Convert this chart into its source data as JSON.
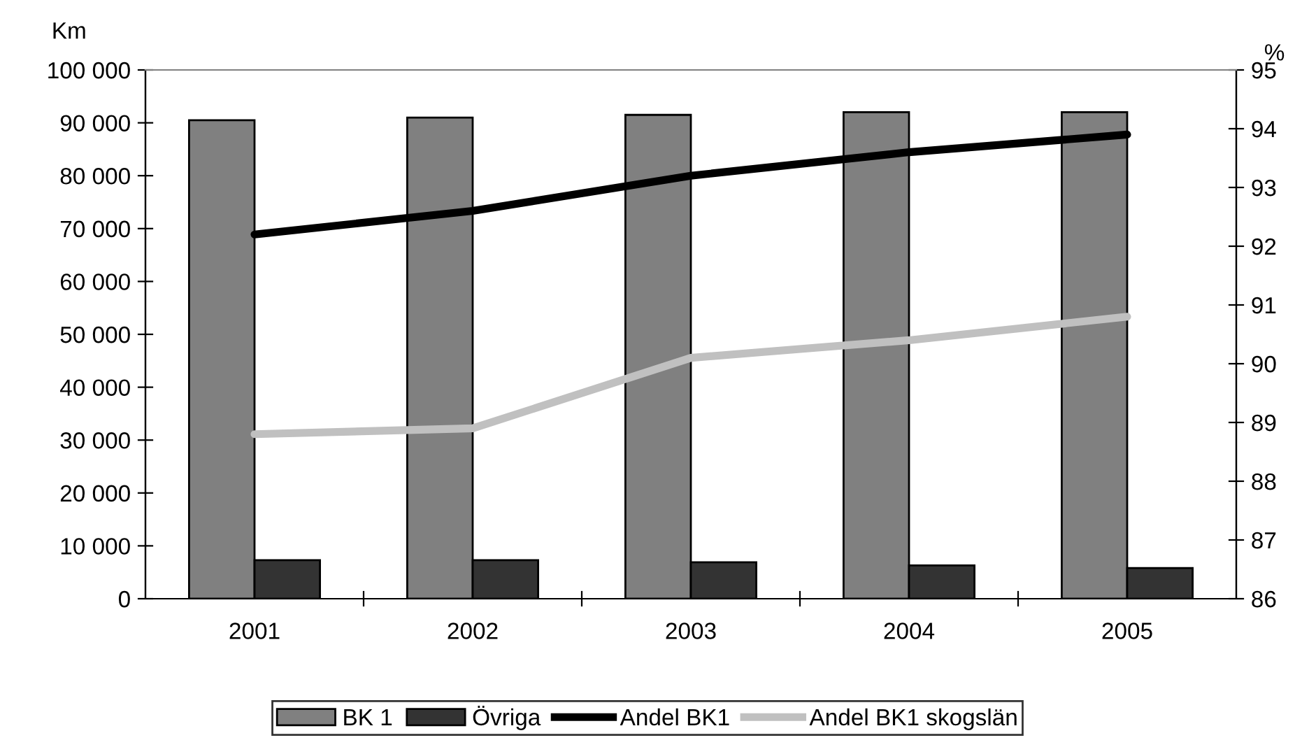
{
  "chart_data": {
    "type": "bar",
    "categories": [
      "2001",
      "2002",
      "2003",
      "2004",
      "2005"
    ],
    "ylabel": "Km",
    "y2label": "%",
    "series": [
      {
        "name": "BK 1",
        "color": "#808080",
        "values": [
          90500,
          91000,
          91500,
          92000,
          92000
        ]
      },
      {
        "name": "Övriga",
        "color": "#333333",
        "values": [
          7300,
          7300,
          6900,
          6300,
          5800
        ]
      },
      {
        "name": "Andel BK1",
        "type": "line",
        "axis": "y2",
        "color": "#000000",
        "values": [
          92.2,
          92.6,
          93.2,
          93.6,
          93.9
        ]
      },
      {
        "name": "Andel BK1 skogslän",
        "type": "line",
        "axis": "y2",
        "color": "#c0c0c0",
        "values": [
          88.8,
          88.9,
          90.1,
          90.4,
          90.8
        ]
      }
    ],
    "ylim": [
      0,
      100000
    ],
    "yticks": [
      {
        "value": 0,
        "label": "0"
      },
      {
        "value": 10000,
        "label": "10 000"
      },
      {
        "value": 20000,
        "label": "20 000"
      },
      {
        "value": 30000,
        "label": "30 000"
      },
      {
        "value": 40000,
        "label": "40 000"
      },
      {
        "value": 50000,
        "label": "50 000"
      },
      {
        "value": 60000,
        "label": "60 000"
      },
      {
        "value": 70000,
        "label": "70 000"
      },
      {
        "value": 80000,
        "label": "80 000"
      },
      {
        "value": 90000,
        "label": "90 000"
      },
      {
        "value": 100000,
        "label": "100 000"
      }
    ],
    "y2lim": [
      86,
      95
    ],
    "y2ticks": [
      86,
      87,
      88,
      89,
      90,
      91,
      92,
      93,
      94,
      95
    ],
    "grid": false,
    "legend": "bottom",
    "line_style": "solid",
    "marker": "none"
  }
}
